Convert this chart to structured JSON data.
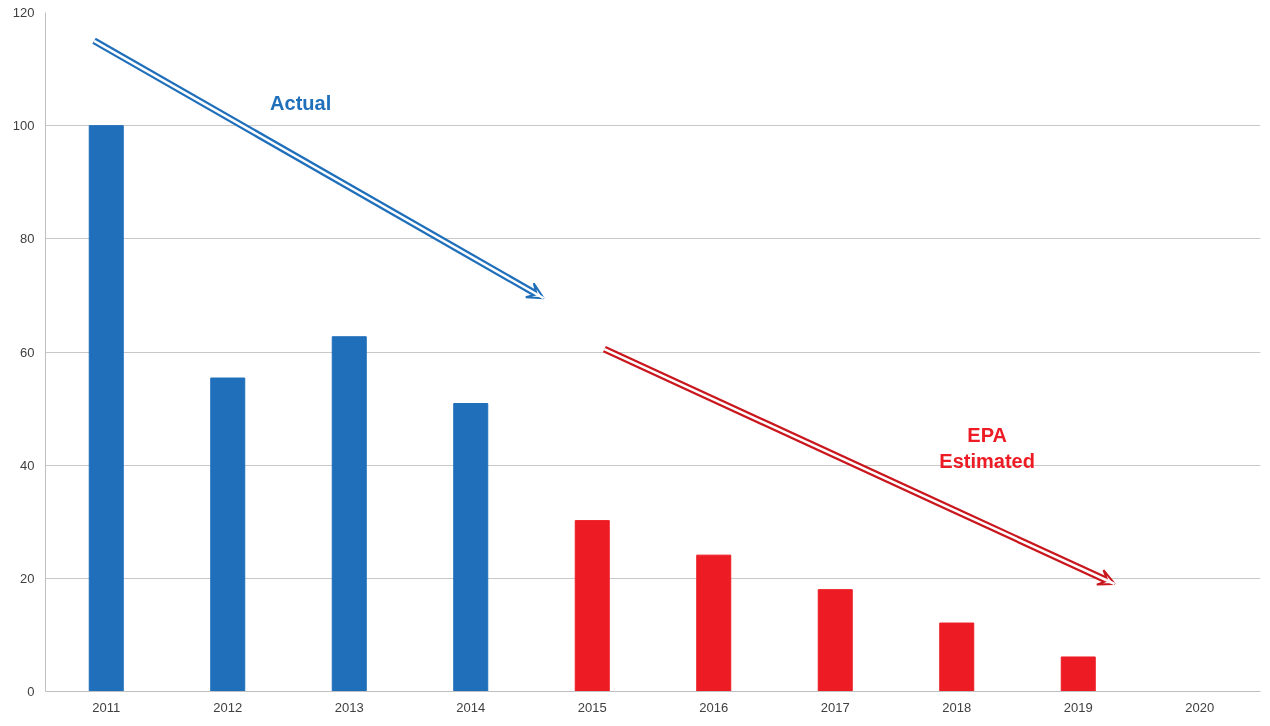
{
  "chart_data": {
    "type": "bar",
    "categories": [
      "2011",
      "2012",
      "2013",
      "2014",
      "2015",
      "2016",
      "2017",
      "2018",
      "2019",
      "2020"
    ],
    "series": [
      {
        "name": "Actual",
        "color": "#1f6fbb",
        "values": [
          100,
          55.4,
          62.7,
          50.9,
          null,
          null,
          null,
          null,
          null,
          null
        ]
      },
      {
        "name": "EPA Estimated",
        "color": "#ed1c24",
        "values": [
          null,
          null,
          null,
          null,
          30.2,
          24.1,
          18,
          12.1,
          6.1,
          null
        ]
      }
    ],
    "ylim": [
      0,
      120
    ],
    "yticks": [
      0,
      20,
      40,
      60,
      80,
      100,
      120
    ],
    "grid": "y"
  }
}
